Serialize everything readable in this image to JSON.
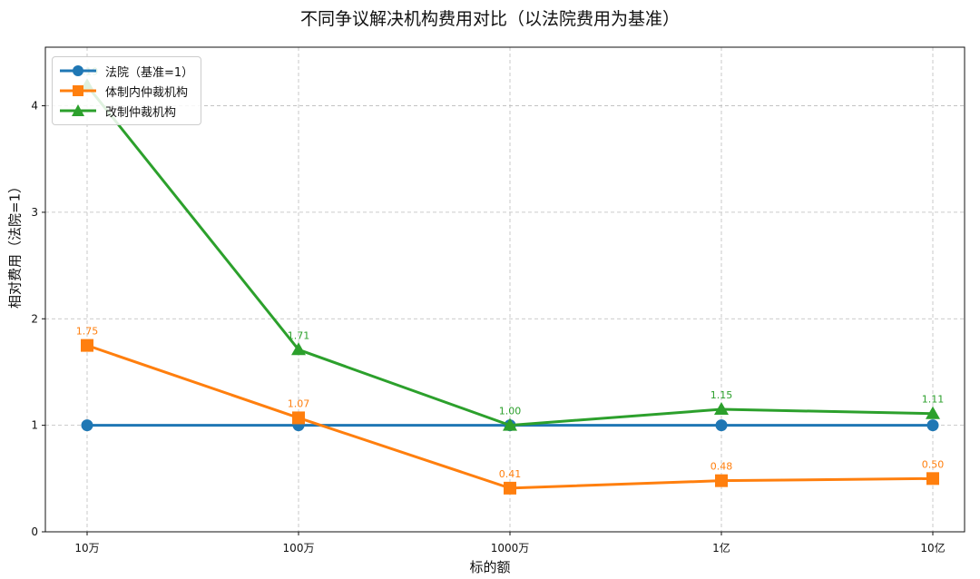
{
  "chart_data": {
    "type": "line",
    "title": "不同争议解决机构费用对比（以法院费用为基准）",
    "xlabel": "标的额",
    "ylabel": "相对费用（法院=1）",
    "categories": [
      "10万",
      "100万",
      "1000万",
      "1亿",
      "10亿"
    ],
    "ylim": [
      0,
      4.55
    ],
    "yticks": [
      0,
      1,
      2,
      3,
      4
    ],
    "grid": true,
    "legend_position": "upper left",
    "series": [
      {
        "name": "法院（基准=1）",
        "values": [
          1,
          1,
          1,
          1,
          1
        ],
        "color": "#1f77b4",
        "marker": "circle",
        "labels": null
      },
      {
        "name": "体制内仲裁机构",
        "values": [
          1.75,
          1.07,
          0.41,
          0.48,
          0.5
        ],
        "color": "#ff7f0e",
        "marker": "square",
        "labels": [
          "1.75",
          "1.07",
          "0.41",
          "0.48",
          "0.50"
        ]
      },
      {
        "name": "改制仲裁机构",
        "values": [
          4.19,
          1.71,
          1.0,
          1.15,
          1.11
        ],
        "color": "#2ca02c",
        "marker": "triangle",
        "labels": [
          "4.19",
          "1.71",
          "1.00",
          "1.15",
          "1.11"
        ]
      }
    ]
  }
}
